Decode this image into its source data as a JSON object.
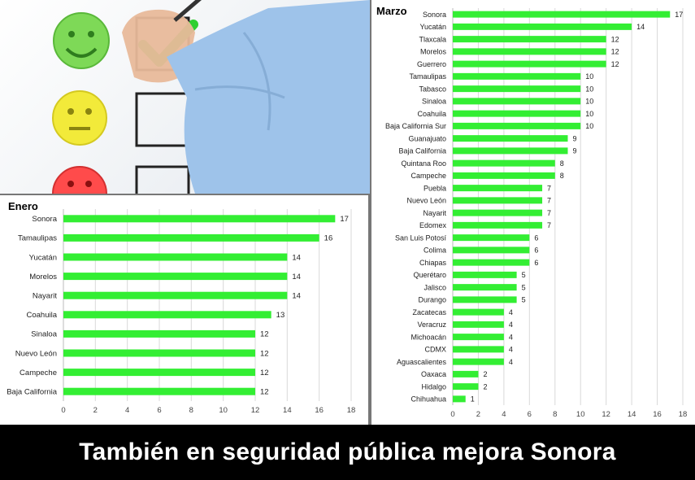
{
  "banner": {
    "text": "También en seguridad pública mejora Sonora"
  },
  "chart_data": [
    {
      "type": "bar",
      "orientation": "horizontal",
      "title": "Enero",
      "categories": [
        "Sonora",
        "Tamaulipas",
        "Yucatán",
        "Morelos",
        "Nayarit",
        "Coahuila",
        "Sinaloa",
        "Nuevo León",
        "Campeche",
        "Baja California"
      ],
      "values": [
        17,
        16,
        14,
        14,
        14,
        13,
        12,
        12,
        12,
        12
      ],
      "xlim": [
        0,
        18
      ],
      "xticks": [
        0,
        2,
        4,
        6,
        8,
        10,
        12,
        14,
        16,
        18
      ],
      "grid": true,
      "bar_color": "#33ee33"
    },
    {
      "type": "bar",
      "orientation": "horizontal",
      "title": "Marzo",
      "categories": [
        "Sonora",
        "Yucatán",
        "Tlaxcala",
        "Morelos",
        "Guerrero",
        "Tamaulipas",
        "Tabasco",
        "Sinaloa",
        "Coahuila",
        "Baja California Sur",
        "Guanajuato",
        "Baja California",
        "Quintana Roo",
        "Campeche",
        "Puebla",
        "Nuevo León",
        "Nayarit",
        "Edomex",
        "San Luis Potosí",
        "Colima",
        "Chiapas",
        "Querétaro",
        "Jalisco",
        "Durango",
        "Zacatecas",
        "Veracruz",
        "Michoacán",
        "CDMX",
        "Aguascalientes",
        "Oaxaca",
        "Hidalgo",
        "Chihuahua"
      ],
      "values": [
        17,
        14,
        12,
        12,
        12,
        10,
        10,
        10,
        10,
        10,
        9,
        9,
        8,
        8,
        7,
        7,
        7,
        7,
        6,
        6,
        6,
        5,
        5,
        5,
        4,
        4,
        4,
        4,
        4,
        2,
        2,
        1
      ],
      "xlim": [
        0,
        18
      ],
      "xticks": [
        0,
        2,
        4,
        6,
        8,
        10,
        12,
        14,
        16,
        18
      ],
      "grid": true,
      "bar_color": "#33ee33"
    }
  ]
}
